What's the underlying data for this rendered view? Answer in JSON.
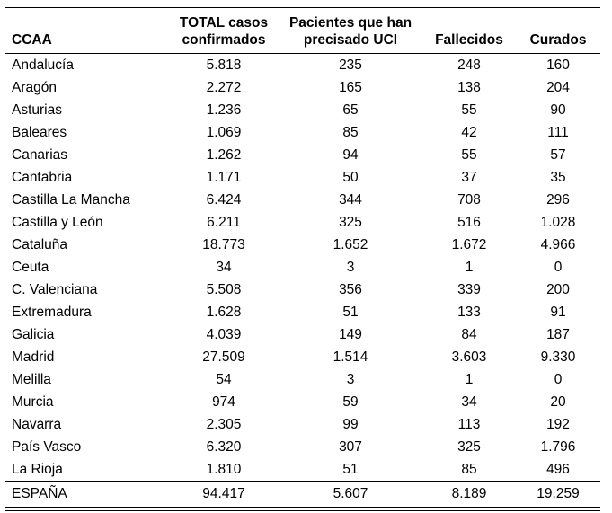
{
  "headers": [
    "CCAA",
    "TOTAL casos\nconfirmados",
    "Pacientes que han\nprecisado UCI",
    "Fallecidos",
    "Curados"
  ],
  "header_lines": [
    [
      "CCAA"
    ],
    [
      "TOTAL casos",
      "confirmados"
    ],
    [
      "Pacientes que han",
      "precisado UCI"
    ],
    [
      "Fallecidos"
    ],
    [
      "Curados"
    ]
  ],
  "rows": [
    [
      "Andalucía",
      "5.818",
      "235",
      "248",
      "160"
    ],
    [
      "Aragón",
      "2.272",
      "165",
      "138",
      "204"
    ],
    [
      "Asturias",
      "1.236",
      "65",
      "55",
      "90"
    ],
    [
      "Baleares",
      "1.069",
      "85",
      "42",
      "111"
    ],
    [
      "Canarias",
      "1.262",
      "94",
      "55",
      "57"
    ],
    [
      "Cantabria",
      "1.171",
      "50",
      "37",
      "35"
    ],
    [
      "Castilla La Mancha",
      "6.424",
      "344",
      "708",
      "296"
    ],
    [
      "Castilla y León",
      "6.211",
      "325",
      "516",
      "1.028"
    ],
    [
      "Cataluña",
      "18.773",
      "1.652",
      "1.672",
      "4.966"
    ],
    [
      "Ceuta",
      "34",
      "3",
      "1",
      "0"
    ],
    [
      "C. Valenciana",
      "5.508",
      "356",
      "339",
      "200"
    ],
    [
      "Extremadura",
      "1.628",
      "51",
      "133",
      "91"
    ],
    [
      "Galicia",
      "4.039",
      "149",
      "84",
      "187"
    ],
    [
      "Madrid",
      "27.509",
      "1.514",
      "3.603",
      "9.330"
    ],
    [
      "Melilla",
      "54",
      "3",
      "1",
      "0"
    ],
    [
      "Murcia",
      "974",
      "59",
      "34",
      "20"
    ],
    [
      "Navarra",
      "2.305",
      "99",
      "113",
      "192"
    ],
    [
      "País Vasco",
      "6.320",
      "307",
      "325",
      "1.796"
    ],
    [
      "La Rioja",
      "1.810",
      "51",
      "85",
      "496"
    ]
  ],
  "total": [
    "ESPAÑA",
    "94.417",
    "5.607",
    "8.189",
    "19.259"
  ]
}
